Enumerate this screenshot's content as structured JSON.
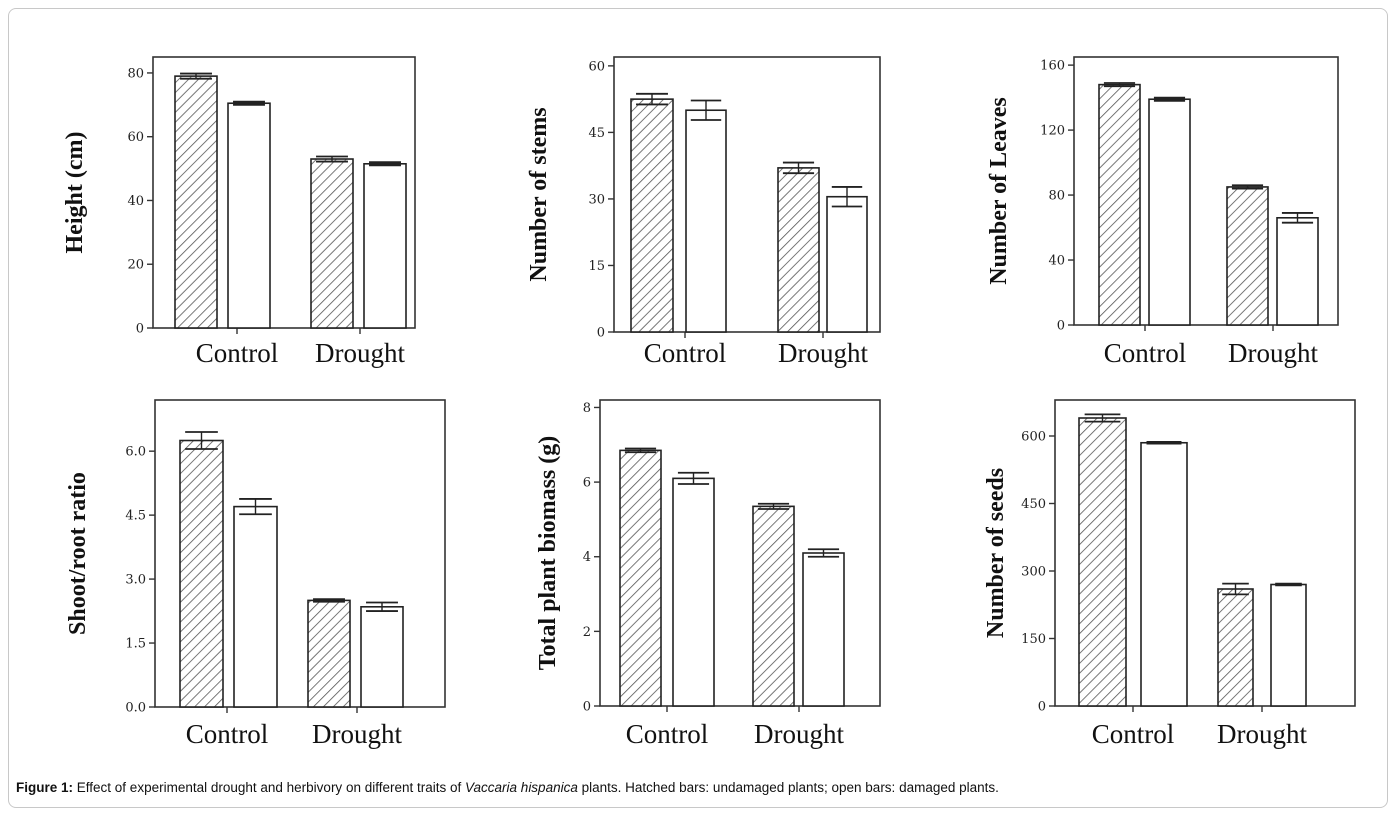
{
  "caption": {
    "label": "Figure 1:",
    "text_before": "Effect of experimental drought and herbivory on different traits of",
    "species": "Vaccaria hispanica",
    "text_after": "plants.  Hatched bars: undamaged plants; open bars: damaged plants."
  },
  "colors": {
    "bar_stroke": "#222222",
    "hatch": "#555555",
    "bar_fill_open": "#ffffff",
    "axis": "#333333"
  },
  "chart_data": [
    {
      "type": "bar",
      "title": "",
      "ylabel": "Height (cm)",
      "xlabel": "",
      "categories": [
        "Control",
        "Drought"
      ],
      "ylim": [
        0,
        85
      ],
      "yticks": [
        "0",
        "20",
        "40",
        "60",
        "80"
      ],
      "ytick_values": [
        0,
        20,
        40,
        60,
        80
      ],
      "series": [
        {
          "name": "undamaged",
          "pattern": "hatched",
          "values": [
            79,
            53
          ],
          "errors": [
            0.8,
            0.8
          ]
        },
        {
          "name": "damaged",
          "pattern": "open",
          "values": [
            70.5,
            51.5
          ],
          "errors": [
            0.5,
            0.5
          ]
        }
      ]
    },
    {
      "type": "bar",
      "title": "",
      "ylabel": "Number of stems",
      "xlabel": "",
      "categories": [
        "Control",
        "Drought"
      ],
      "ylim": [
        0,
        62
      ],
      "yticks": [
        "0",
        "15",
        "30",
        "45",
        "60"
      ],
      "ytick_values": [
        0,
        15,
        30,
        45,
        60
      ],
      "series": [
        {
          "name": "undamaged",
          "pattern": "hatched",
          "values": [
            52.5,
            37
          ],
          "errors": [
            1.2,
            1.2
          ]
        },
        {
          "name": "damaged",
          "pattern": "open",
          "values": [
            50,
            30.5
          ],
          "errors": [
            2.2,
            2.2
          ]
        }
      ]
    },
    {
      "type": "bar",
      "title": "",
      "ylabel": "Number of Leaves",
      "xlabel": "",
      "categories": [
        "Control",
        "Drought"
      ],
      "ylim": [
        0,
        165
      ],
      "yticks": [
        "0",
        "40",
        "80",
        "120",
        "160"
      ],
      "ytick_values": [
        0,
        40,
        80,
        120,
        160
      ],
      "series": [
        {
          "name": "undamaged",
          "pattern": "hatched",
          "values": [
            148,
            85
          ],
          "errors": [
            1,
            1
          ]
        },
        {
          "name": "damaged",
          "pattern": "open",
          "values": [
            139,
            66
          ],
          "errors": [
            1,
            3
          ]
        }
      ]
    },
    {
      "type": "bar",
      "title": "",
      "ylabel": "Shoot/root ratio",
      "xlabel": "",
      "categories": [
        "Control",
        "Drought"
      ],
      "ylim": [
        0,
        7.2
      ],
      "yticks": [
        "0.0",
        "1.5",
        "3.0",
        "4.5",
        "6.0"
      ],
      "ytick_values": [
        0,
        1.5,
        3,
        4.5,
        6
      ],
      "series": [
        {
          "name": "undamaged",
          "pattern": "hatched",
          "values": [
            6.25,
            2.5
          ],
          "errors": [
            0.2,
            0.03
          ]
        },
        {
          "name": "damaged",
          "pattern": "open",
          "values": [
            4.7,
            2.35
          ],
          "errors": [
            0.18,
            0.1
          ]
        }
      ]
    },
    {
      "type": "bar",
      "title": "",
      "ylabel": "Total plant biomass (g)",
      "xlabel": "",
      "categories": [
        "Control",
        "Drought"
      ],
      "ylim": [
        0,
        8.2
      ],
      "yticks": [
        "0",
        "2",
        "4",
        "6",
        "8"
      ],
      "ytick_values": [
        0,
        2,
        4,
        6,
        8
      ],
      "series": [
        {
          "name": "undamaged",
          "pattern": "hatched",
          "values": [
            6.85,
            5.35
          ],
          "errors": [
            0.05,
            0.07
          ]
        },
        {
          "name": "damaged",
          "pattern": "open",
          "values": [
            6.1,
            4.1
          ],
          "errors": [
            0.15,
            0.1
          ]
        }
      ]
    },
    {
      "type": "bar",
      "title": "",
      "ylabel": "Number of seeds",
      "xlabel": "",
      "categories": [
        "Control",
        "Drought"
      ],
      "ylim": [
        0,
        680
      ],
      "yticks": [
        "0",
        "150",
        "300",
        "450",
        "600"
      ],
      "ytick_values": [
        0,
        150,
        300,
        450,
        600
      ],
      "series": [
        {
          "name": "undamaged",
          "pattern": "hatched",
          "values": [
            640,
            260
          ],
          "errors": [
            8,
            12
          ]
        },
        {
          "name": "damaged",
          "pattern": "open",
          "values": [
            585,
            270
          ],
          "errors": [
            2,
            2
          ]
        }
      ]
    }
  ]
}
